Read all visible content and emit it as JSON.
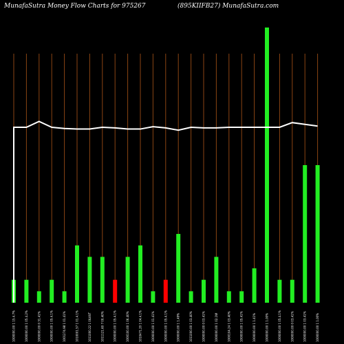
{
  "header": {
    "left": "MunafaSutra  Money Flow  Charts for 975267",
    "right": "(895KIIFB27) MunafaSutra.com"
  },
  "colors": {
    "background": "#000000",
    "up_bar": "#22ee22",
    "down_bar": "#ff0000",
    "gridline": "#8b4513",
    "price_line": "#ffffff"
  },
  "chart_data": {
    "type": "bar",
    "title": "MunafaSutra  Money Flow  Charts for 975267",
    "subtitle": "(895KIIFB27) MunafaSutra.com",
    "categories": [
      "1000000.00 1 15.4.7%",
      "1000000.00 1 05.4.2%",
      "1000000.00 0 31.41%",
      "1000000.00 1 05.4.1%",
      "1001274.98 1 01.41%",
      "1010001.57 1 01.4.1%",
      "1011000.22 1 0ILKVT",
      "1011121.60 7 00.40%",
      "1000000.00 1 05.4.1%",
      "1000100.00 1 06.40%",
      "1010471.20 1 04.4.1%",
      "1000000.00 1 01.41%",
      "1000000.00 1 05.4.1%",
      "1000000.00 1 1.49%",
      "1011000.00 1 03.40%",
      "1000000.00 0 03.41%",
      "1000000.00 1 02.1W",
      "1000104.24 1 03.40%",
      "1000000.00 1 05.41%",
      "1000000.00 1 1.41%",
      "1000000.00 1 1.00%",
      "1000000.00 1 05.4.1%",
      "1000000.00 0 03.41%",
      "1000000.00 1 03.41%",
      "1000000.00 1 1.00%"
    ],
    "values": [
      2,
      2,
      1,
      2,
      1,
      5,
      4,
      4,
      2,
      4,
      5,
      1,
      2,
      6,
      1,
      2,
      4,
      1,
      1,
      3,
      24,
      2,
      2,
      12,
      12
    ],
    "directions": [
      "up",
      "up",
      "up",
      "up",
      "up",
      "up",
      "up",
      "up",
      "down",
      "up",
      "up",
      "up",
      "down",
      "up",
      "up",
      "up",
      "up",
      "up",
      "up",
      "up",
      "up",
      "up",
      "up",
      "up",
      "up"
    ],
    "price_line": [
      30,
      30,
      31,
      30,
      29.8,
      29.7,
      29.7,
      30,
      29.9,
      29.7,
      29.7,
      30.1,
      29.9,
      29.5,
      30,
      29.9,
      29.9,
      30,
      30,
      30,
      30,
      30,
      30.8,
      30.5,
      30.2
    ],
    "price_line_start": 0,
    "ylim": [
      0,
      24
    ]
  }
}
